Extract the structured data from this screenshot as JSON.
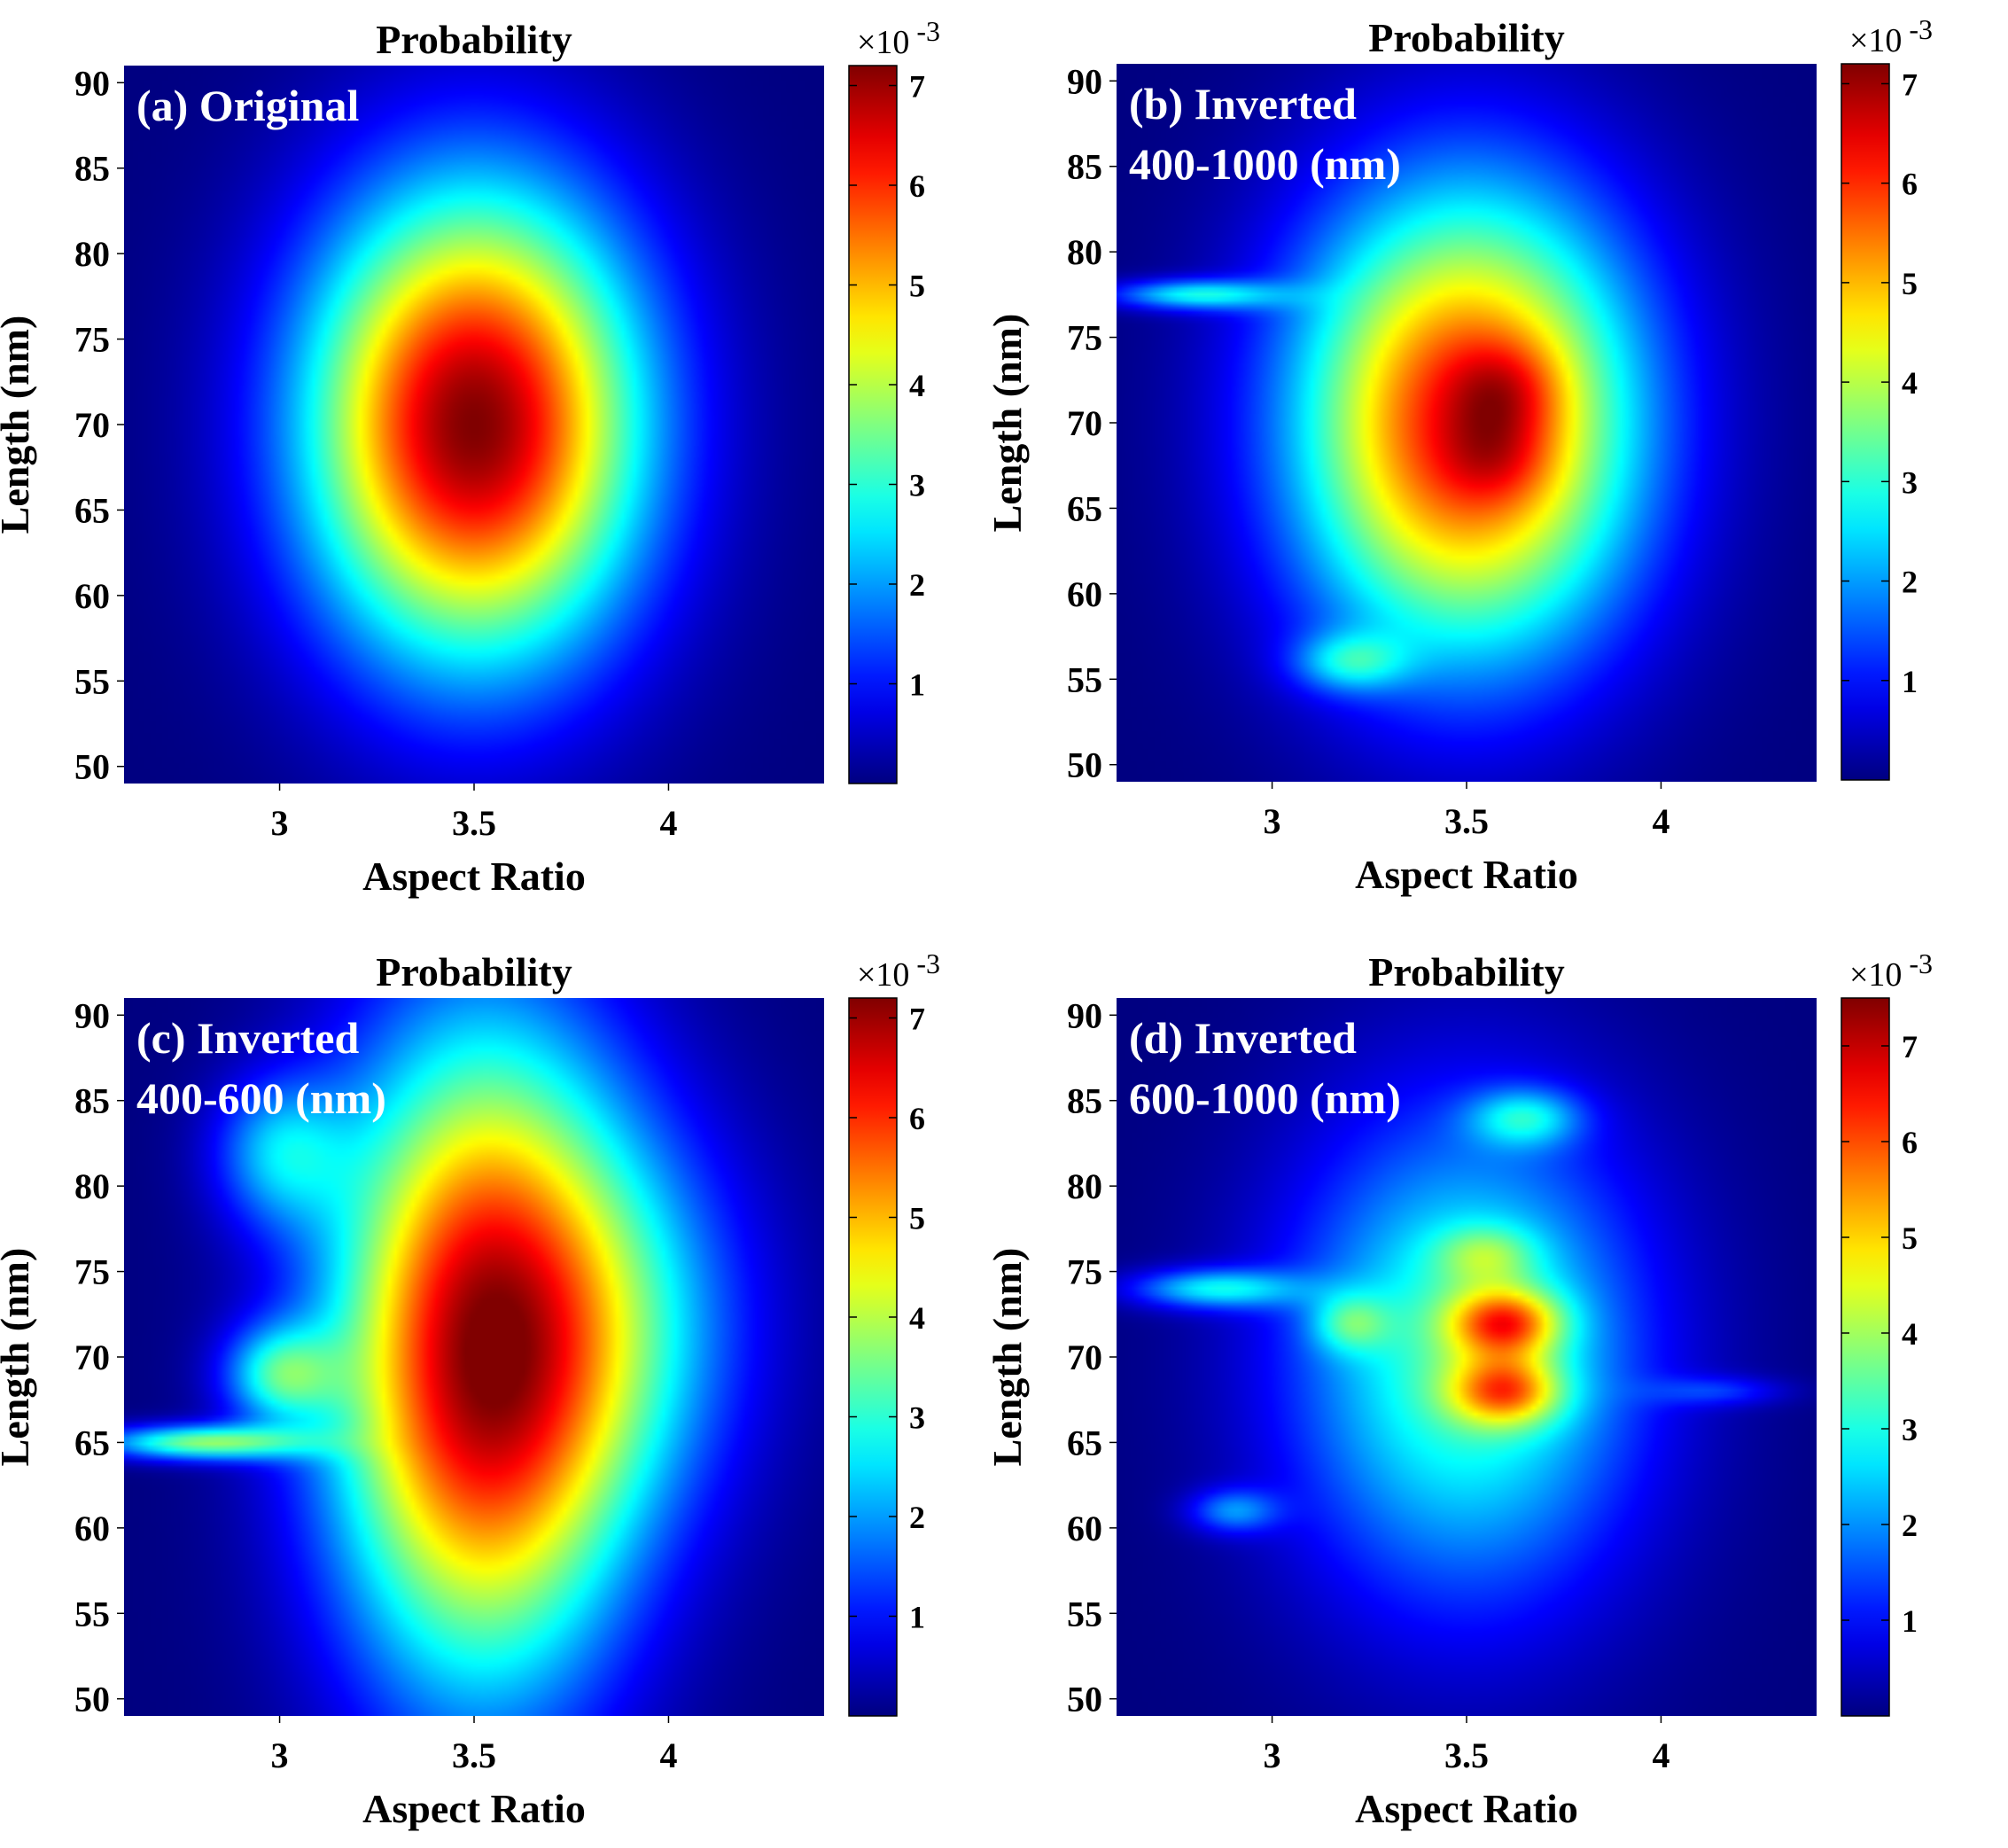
{
  "chart_data": [
    {
      "type": "heatmap",
      "panel_label": "(a) Original",
      "panel_label_line2": "",
      "title": "Probability",
      "xlabel": "Aspect Ratio",
      "ylabel": "Length (nm)",
      "xlim": [
        2.6,
        4.4
      ],
      "ylim": [
        49,
        91
      ],
      "xticks": [
        3,
        3.5,
        4
      ],
      "yticks": [
        50,
        55,
        60,
        65,
        70,
        75,
        80,
        85,
        90
      ],
      "colorbar": {
        "label": "×10^-3",
        "min": 0,
        "max": 7.2,
        "ticks": [
          1,
          2,
          3,
          4,
          5,
          6,
          7
        ]
      },
      "blobs": [
        {
          "cx": 3.5,
          "cy": 70,
          "sx": 0.3,
          "sy": 9.5,
          "amp": 7.2
        }
      ]
    },
    {
      "type": "heatmap",
      "panel_label": "(b) Inverted",
      "panel_label_line2": "400-1000 (nm)",
      "title": "Probability",
      "xlabel": "Aspect Ratio",
      "ylabel": "Length (nm)",
      "xlim": [
        2.6,
        4.4
      ],
      "ylim": [
        49,
        91
      ],
      "xticks": [
        3,
        3.5,
        4
      ],
      "yticks": [
        50,
        55,
        60,
        65,
        70,
        75,
        80,
        85,
        90
      ],
      "colorbar": {
        "label": "×10^-3",
        "min": 0,
        "max": 7.2,
        "ticks": [
          1,
          2,
          3,
          4,
          5,
          6,
          7
        ]
      },
      "blobs": [
        {
          "cx": 3.5,
          "cy": 70,
          "sx": 0.31,
          "sy": 9.5,
          "amp": 6.3
        },
        {
          "cx": 3.6,
          "cy": 72,
          "sx": 0.1,
          "sy": 2,
          "amp": 1.0
        },
        {
          "cx": 3.58,
          "cy": 68,
          "sx": 0.1,
          "sy": 2,
          "amp": 0.8
        },
        {
          "cx": 2.8,
          "cy": 77.5,
          "sx": 0.15,
          "sy": 0.6,
          "amp": 2.5
        },
        {
          "cx": 3.2,
          "cy": 56,
          "sx": 0.1,
          "sy": 1.2,
          "amp": 1.8
        }
      ]
    },
    {
      "type": "heatmap",
      "panel_label": "(c) Inverted",
      "panel_label_line2": "400-600 (nm)",
      "title": "Probability",
      "xlabel": "Aspect Ratio",
      "ylabel": "Length (nm)",
      "xlim": [
        2.6,
        4.4
      ],
      "ylim": [
        49,
        91
      ],
      "xticks": [
        3,
        3.5,
        4
      ],
      "yticks": [
        50,
        55,
        60,
        65,
        70,
        75,
        80,
        85,
        90
      ],
      "colorbar": {
        "label": "×10^-3",
        "min": 0,
        "max": 7.2,
        "ticks": [
          1,
          2,
          3,
          4,
          5,
          6,
          7
        ]
      },
      "blobs": [
        {
          "cx": 3.52,
          "cy": 70,
          "sx": 0.27,
          "sy": 13,
          "amp": 6.9
        },
        {
          "cx": 3.0,
          "cy": 69,
          "sx": 0.1,
          "sy": 2,
          "amp": 2.5
        },
        {
          "cx": 2.8,
          "cy": 65,
          "sx": 0.18,
          "sy": 0.7,
          "amp": 3.5
        },
        {
          "cx": 3.0,
          "cy": 82,
          "sx": 0.12,
          "sy": 3,
          "amp": 2.0
        },
        {
          "cx": 3.9,
          "cy": 72,
          "sx": 0.25,
          "sy": 8,
          "amp": 1.6
        }
      ]
    },
    {
      "type": "heatmap",
      "panel_label": "(d) Inverted",
      "panel_label_line2": "600-1000 (nm)",
      "title": "Probability",
      "xlabel": "Aspect Ratio",
      "ylabel": "Length (nm)",
      "xlim": [
        2.6,
        4.4
      ],
      "ylim": [
        49,
        91
      ],
      "xticks": [
        3,
        3.5,
        4
      ],
      "yticks": [
        50,
        55,
        60,
        65,
        70,
        75,
        80,
        85,
        90
      ],
      "colorbar": {
        "label": "×10^-3",
        "min": 0,
        "max": 7.5,
        "ticks": [
          1,
          2,
          3,
          4,
          5,
          6,
          7
        ]
      },
      "blobs": [
        {
          "cx": 3.5,
          "cy": 70,
          "sx": 0.32,
          "sy": 10,
          "amp": 3.4
        },
        {
          "cx": 3.6,
          "cy": 72,
          "sx": 0.1,
          "sy": 1.4,
          "amp": 3.4
        },
        {
          "cx": 3.6,
          "cy": 68,
          "sx": 0.1,
          "sy": 1.4,
          "amp": 3.1
        },
        {
          "cx": 3.2,
          "cy": 72,
          "sx": 0.07,
          "sy": 1.2,
          "amp": 1.6
        },
        {
          "cx": 3.55,
          "cy": 76,
          "sx": 0.09,
          "sy": 1.2,
          "amp": 1.4
        },
        {
          "cx": 2.85,
          "cy": 74,
          "sx": 0.15,
          "sy": 0.8,
          "amp": 2.5
        },
        {
          "cx": 3.65,
          "cy": 84,
          "sx": 0.1,
          "sy": 1.2,
          "amp": 2.0
        },
        {
          "cx": 2.9,
          "cy": 61,
          "sx": 0.08,
          "sy": 0.9,
          "amp": 1.7
        },
        {
          "cx": 4.15,
          "cy": 68,
          "sx": 0.12,
          "sy": 0.6,
          "amp": 1.0
        }
      ]
    }
  ]
}
